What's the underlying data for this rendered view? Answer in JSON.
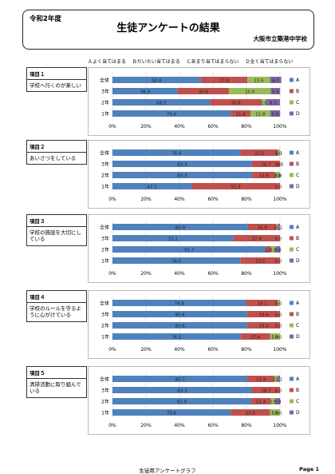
{
  "header": {
    "year": "令和2年度",
    "title": "生徒アンケートの結果",
    "school": "大阪市立築港中学校"
  },
  "legend_options": [
    "Ａよく当てはまる",
    "Ｂだいたい当てはまる",
    "Ｃあまり当てはまらない",
    "Ｄ全く当てはまらない"
  ],
  "footer": {
    "label": "生徒用アンケートグラフ",
    "page": "Page 1"
  },
  "colors": {
    "A": "#4F81BD",
    "B": "#C0504D",
    "C": "#9BBB59",
    "D": "#8064A2"
  },
  "chart_data": [
    {
      "type": "bar",
      "item_label": "項目１",
      "question": "学校へ行くのが楽しい",
      "categories": [
        "全体",
        "3年",
        "2年",
        "1年"
      ],
      "series": [
        {
          "name": "A",
          "values": [
            52.8,
            38.9,
            58.3,
            70.6
          ]
        },
        {
          "name": "B",
          "values": [
            27.8,
            30.6,
            30.6,
            11.8
          ]
        },
        {
          "name": "C",
          "values": [
            13.5,
            25.0,
            2.8,
            11.8
          ]
        },
        {
          "name": "D",
          "values": [
            6.7,
            5.6,
            8.3,
            5.9
          ]
        }
      ],
      "labels": [
        [
          "52.8",
          "27.8",
          "13.5",
          "6.7"
        ],
        [
          "38.9",
          "30.6",
          "25.0",
          "5.6"
        ],
        [
          "58.3",
          "30.6",
          "2.8",
          "8.3"
        ],
        [
          "70.6",
          "11.8",
          "11.8",
          "5.9"
        ]
      ],
      "xticks": [
        "0%",
        "20%",
        "40%",
        "60%",
        "80%",
        "100%"
      ],
      "xlim": [
        0,
        100
      ]
    },
    {
      "type": "bar",
      "item_label": "項目２",
      "question": "あいさつをしている",
      "categories": [
        "全体",
        "3年",
        "2年",
        "1年"
      ],
      "series": [
        {
          "name": "A",
          "values": [
            76.4,
            83.3,
            83.3,
            47.1
          ]
        },
        {
          "name": "B",
          "values": [
            22.5,
            16.7,
            13.9,
            52.9
          ]
        },
        {
          "name": "C",
          "values": [
            1.1,
            0.0,
            2.8,
            0.0
          ]
        },
        {
          "name": "D",
          "values": [
            0.0,
            0.0,
            0.0,
            0.0
          ]
        }
      ],
      "labels": [
        [
          "76.4",
          "22.5",
          "1.1",
          "0.0"
        ],
        [
          "83.3",
          "16.7",
          "0.0",
          "0.0"
        ],
        [
          "83.3",
          "13.9",
          "2.8",
          "0.0"
        ],
        [
          "47.1",
          "52.9",
          "",
          "0.0"
        ]
      ],
      "xticks": [
        "0%",
        "20%",
        "40%",
        "60%",
        "80%",
        "100%"
      ],
      "xlim": [
        0,
        100
      ]
    },
    {
      "type": "bar",
      "item_label": "項目３",
      "question": "学校の施設を大切にしている",
      "categories": [
        "全体",
        "3年",
        "2年",
        "1年"
      ],
      "series": [
        {
          "name": "A",
          "values": [
            80.9,
            72.2,
            91.7,
            76.5
          ]
        },
        {
          "name": "B",
          "values": [
            16.9,
            27.8,
            2.8,
            23.5
          ]
        },
        {
          "name": "C",
          "values": [
            1.1,
            0.0,
            2.8,
            0.0
          ]
        },
        {
          "name": "D",
          "values": [
            1.1,
            0.0,
            2.8,
            0.0
          ]
        }
      ],
      "labels": [
        [
          "80.9",
          "16.9",
          "1.1",
          "1.1"
        ],
        [
          "72.2",
          "27.8",
          "",
          "0.0"
        ],
        [
          "91.7",
          "2.8",
          "2.8",
          "2.8"
        ],
        [
          "76.5",
          "23.5",
          "",
          "0.0"
        ]
      ],
      "xticks": [
        "0%",
        "20%",
        "40%",
        "60%",
        "80%",
        "100%"
      ],
      "xlim": [
        0,
        100
      ]
    },
    {
      "type": "bar",
      "item_label": "項目４",
      "question": "学校のルールを守るように心がけている",
      "categories": [
        "全体",
        "3年",
        "2年",
        "1年"
      ],
      "series": [
        {
          "name": "A",
          "values": [
            79.8,
            80.6,
            80.6,
            76.5
          ]
        },
        {
          "name": "B",
          "values": [
            19.1,
            19.4,
            19.4,
            17.6
          ]
        },
        {
          "name": "C",
          "values": [
            1.1,
            0.0,
            0.0,
            5.9
          ]
        },
        {
          "name": "D",
          "values": [
            0.0,
            0.0,
            0.0,
            0.0
          ]
        }
      ],
      "labels": [
        [
          "79.8",
          "19.1",
          "",
          "0.0"
        ],
        [
          "80.6",
          "19.4",
          "",
          "0.0"
        ],
        [
          "80.6",
          "19.4",
          "",
          "0.0"
        ],
        [
          "76.5",
          "17.6",
          "5.9",
          "0.0"
        ]
      ],
      "xticks": [
        "0%",
        "20%",
        "40%",
        "60%",
        "80%",
        "100%"
      ],
      "xlim": [
        0,
        100
      ]
    },
    {
      "type": "bar",
      "item_label": "項目５",
      "question": "清掃活動に取り組んでいる",
      "categories": [
        "全体",
        "3年",
        "2年",
        "1年"
      ],
      "series": [
        {
          "name": "A",
          "values": [
            80.7,
            83.3,
            82.9,
            70.6
          ]
        },
        {
          "name": "B",
          "values": [
            15.9,
            16.7,
            11.4,
            23.5
          ]
        },
        {
          "name": "C",
          "values": [
            2.3,
            0.0,
            2.9,
            5.9
          ]
        },
        {
          "name": "D",
          "values": [
            1.1,
            0.0,
            2.9,
            0.0
          ]
        }
      ],
      "labels": [
        [
          "80.7",
          "15.9",
          "2.3",
          "1.1"
        ],
        [
          "83.3",
          "16.7",
          "",
          "0.0"
        ],
        [
          "82.9",
          "11.4",
          "2.9",
          "2.9"
        ],
        [
          "70.6",
          "23.5",
          "5.9",
          "0.0"
        ]
      ],
      "xticks": [
        "0%",
        "20%",
        "40%",
        "60%",
        "80%",
        "100%"
      ],
      "xlim": [
        0,
        100
      ]
    }
  ]
}
